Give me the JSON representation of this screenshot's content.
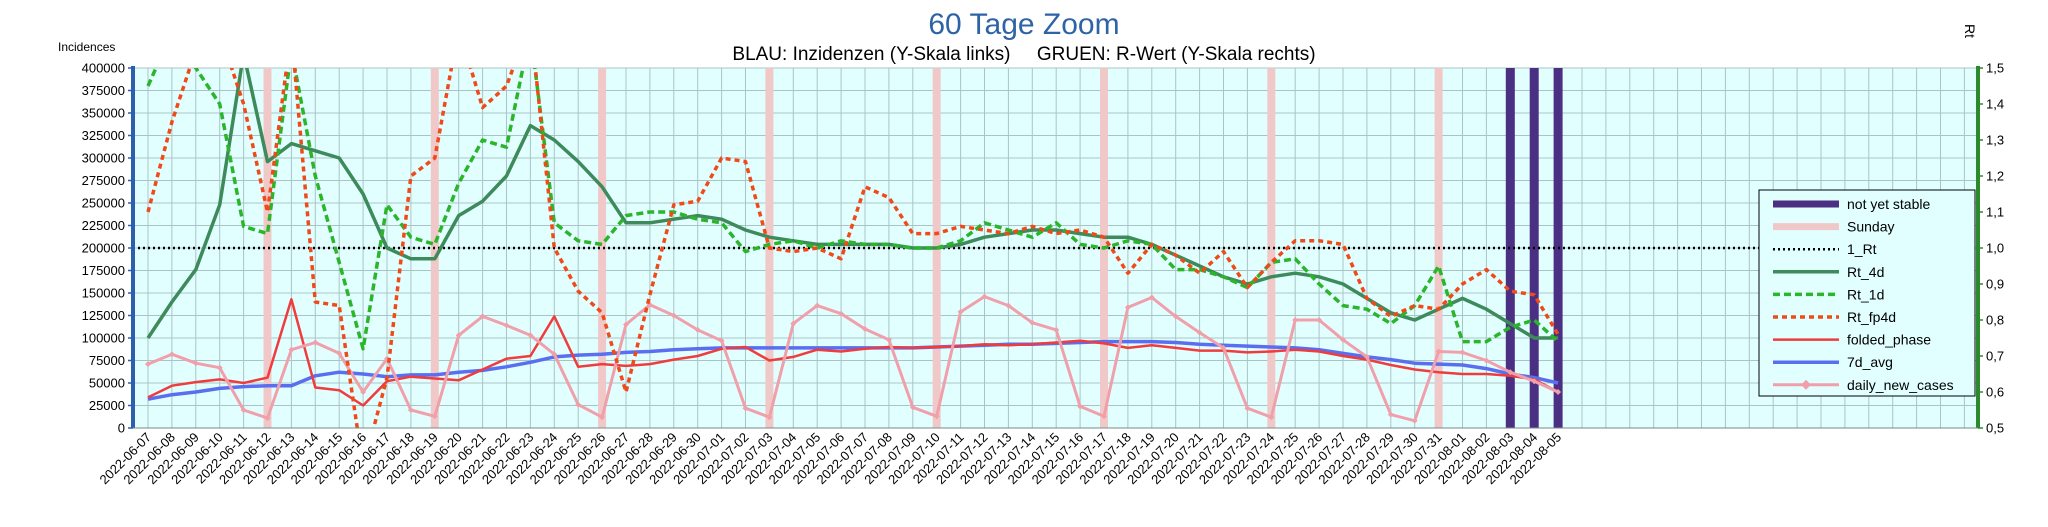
{
  "chart_data": {
    "type": "line",
    "title": "60 Tage Zoom",
    "subtitle": "BLAU: Inzidenzen (Y-Skala links)     GRUEN: R-Wert (Y-Skala rechts)",
    "ylabel_left": "Incidences",
    "ylabel_right": "Rt",
    "ylim_left": [
      0,
      400000
    ],
    "ylim_right": [
      0.5,
      1.5
    ],
    "yticks_left": [
      "0",
      "25000",
      "50000",
      "75000",
      "100000",
      "125000",
      "150000",
      "175000",
      "200000",
      "225000",
      "250000",
      "275000",
      "300000",
      "325000",
      "350000",
      "375000",
      "400000"
    ],
    "yticks_right": [
      "0,5",
      "0,6",
      "0,7",
      "0,8",
      "0,9",
      "1,0",
      "1,1",
      "1,2",
      "1,3",
      "1,4",
      "1,5"
    ],
    "categories": [
      "2022-06-07",
      "2022-06-08",
      "2022-06-09",
      "2022-06-10",
      "2022-06-11",
      "2022-06-12",
      "2022-06-13",
      "2022-06-14",
      "2022-06-15",
      "2022-06-16",
      "2022-06-17",
      "2022-06-18",
      "2022-06-19",
      "2022-06-20",
      "2022-06-21",
      "2022-06-22",
      "2022-06-23",
      "2022-06-24",
      "2022-06-25",
      "2022-06-26",
      "2022-06-27",
      "2022-06-28",
      "2022-06-29",
      "2022-06-30",
      "2022-07-01",
      "2022-07-02",
      "2022-07-03",
      "2022-07-04",
      "2022-07-05",
      "2022-07-06",
      "2022-07-07",
      "2022-07-08",
      "2022-07-09",
      "2022-07-10",
      "2022-07-11",
      "2022-07-12",
      "2022-07-13",
      "2022-07-14",
      "2022-07-15",
      "2022-07-16",
      "2022-07-17",
      "2022-07-18",
      "2022-07-19",
      "2022-07-20",
      "2022-07-21",
      "2022-07-22",
      "2022-07-23",
      "2022-07-24",
      "2022-07-25",
      "2022-07-26",
      "2022-07-27",
      "2022-07-28",
      "2022-07-29",
      "2022-07-30",
      "2022-07-31",
      "2022-08-01",
      "2022-08-02",
      "2022-08-03",
      "2022-08-04",
      "2022-08-05"
    ],
    "sundays": [
      "2022-06-12",
      "2022-06-19",
      "2022-06-26",
      "2022-07-03",
      "2022-07-10",
      "2022-07-17",
      "2022-07-24",
      "2022-07-31"
    ],
    "not_yet_stable": [
      "2022-08-03",
      "2022-08-04",
      "2022-08-05"
    ],
    "reference_line_rt": 1.0,
    "series": [
      {
        "name": "Rt_4d",
        "axis": "right",
        "color": "#3d8a5a",
        "style": "solid",
        "width": 3.5,
        "values": [
          0.75,
          0.85,
          0.94,
          1.12,
          1.54,
          1.24,
          1.29,
          1.27,
          1.25,
          1.15,
          1.0,
          0.97,
          0.97,
          1.09,
          1.13,
          1.2,
          1.34,
          1.3,
          1.24,
          1.17,
          1.07,
          1.07,
          1.08,
          1.09,
          1.08,
          1.05,
          1.03,
          1.02,
          1.01,
          1.01,
          1.01,
          1.01,
          1.0,
          1.0,
          1.01,
          1.03,
          1.04,
          1.05,
          1.05,
          1.04,
          1.03,
          1.03,
          1.01,
          0.98,
          0.95,
          0.92,
          0.9,
          0.92,
          0.93,
          0.92,
          0.9,
          0.86,
          0.82,
          0.8,
          0.83,
          0.86,
          0.83,
          0.79,
          0.75,
          0.75
        ]
      },
      {
        "name": "Rt_1d",
        "axis": "right",
        "color": "#2ab52a",
        "style": "dashed",
        "width": 3.5,
        "values": [
          1.45,
          1.6,
          1.5,
          1.4,
          1.06,
          1.04,
          1.55,
          1.2,
          0.96,
          0.72,
          1.12,
          1.03,
          1.01,
          1.18,
          1.3,
          1.28,
          1.6,
          1.07,
          1.02,
          1.01,
          1.09,
          1.1,
          1.1,
          1.08,
          1.07,
          0.99,
          1.01,
          1.02,
          1.0,
          1.02,
          1.01,
          1.01,
          1.0,
          1.0,
          1.02,
          1.07,
          1.05,
          1.03,
          1.07,
          1.01,
          1.0,
          1.02,
          1.01,
          0.94,
          0.94,
          0.92,
          0.89,
          0.96,
          0.97,
          0.9,
          0.84,
          0.83,
          0.79,
          0.84,
          0.95,
          0.74,
          0.74,
          0.78,
          0.8,
          0.74
        ]
      },
      {
        "name": "Rt_fp4d",
        "axis": "right",
        "color": "#f04a1a",
        "style": "dotted",
        "width": 3.5,
        "values": [
          1.1,
          1.35,
          1.55,
          1.6,
          1.4,
          1.1,
          1.6,
          0.85,
          0.84,
          0.39,
          0.64,
          1.2,
          1.25,
          1.61,
          1.39,
          1.45,
          1.63,
          1.0,
          0.88,
          0.82,
          0.6,
          0.87,
          1.12,
          1.13,
          1.25,
          1.24,
          1.0,
          0.99,
          1.0,
          0.97,
          1.17,
          1.14,
          1.04,
          1.04,
          1.06,
          1.05,
          1.04,
          1.06,
          1.04,
          1.05,
          1.03,
          0.93,
          1.01,
          0.98,
          0.93,
          0.99,
          0.89,
          0.96,
          1.02,
          1.02,
          1.01,
          0.86,
          0.81,
          0.84,
          0.83,
          0.9,
          0.94,
          0.88,
          0.87,
          0.76
        ]
      },
      {
        "name": "folded_phase",
        "axis": "left",
        "color": "#f03c3c",
        "style": "solid",
        "width": 2.5,
        "values": [
          34000,
          47000,
          51000,
          54000,
          50000,
          56000,
          143000,
          45000,
          42000,
          25000,
          52000,
          57000,
          55000,
          53000,
          65000,
          77000,
          80000,
          124000,
          68000,
          71000,
          69000,
          71000,
          76000,
          80000,
          88000,
          90000,
          75000,
          79000,
          87000,
          85000,
          88000,
          90000,
          89000,
          90000,
          91000,
          93000,
          92000,
          93000,
          95000,
          97000,
          94000,
          89000,
          92000,
          89000,
          86000,
          86000,
          84000,
          85000,
          87000,
          85000,
          80000,
          76000,
          70000,
          65000,
          62000,
          60000,
          60000,
          58000,
          54000,
          40000
        ]
      },
      {
        "name": "7d_avg",
        "axis": "left",
        "color": "#5a6ef0",
        "style": "solid",
        "width": 3.5,
        "values": [
          32000,
          37000,
          40000,
          44000,
          46000,
          47000,
          47000,
          58000,
          62000,
          60000,
          57000,
          59000,
          59000,
          62000,
          64000,
          68000,
          73000,
          79000,
          81000,
          82000,
          84000,
          85000,
          87000,
          88000,
          89000,
          89000,
          89000,
          89000,
          89000,
          89000,
          89000,
          89000,
          89000,
          90000,
          91000,
          92000,
          93000,
          93000,
          94000,
          95000,
          96000,
          96000,
          96000,
          95000,
          93000,
          92000,
          91000,
          90000,
          89000,
          87000,
          83000,
          79000,
          76000,
          72000,
          71000,
          70000,
          66000,
          60000,
          56000,
          50000
        ]
      },
      {
        "name": "daily_new_cases",
        "axis": "left",
        "color": "#f0a0aa",
        "style": "solid",
        "width": 3,
        "values": [
          71000,
          82000,
          72000,
          67000,
          20000,
          11000,
          87000,
          95000,
          83000,
          40000,
          77000,
          20000,
          13000,
          103000,
          124000,
          114000,
          103000,
          82000,
          26000,
          12000,
          115000,
          137000,
          125000,
          109000,
          97000,
          22000,
          12000,
          116000,
          136000,
          127000,
          110000,
          98000,
          23000,
          13000,
          129000,
          146000,
          136000,
          117000,
          109000,
          24000,
          13000,
          134000,
          145000,
          124000,
          106000,
          89000,
          22000,
          12000,
          120000,
          120000,
          98000,
          79000,
          15000,
          8000,
          85000,
          84000,
          75000,
          62000,
          52000,
          40000
        ]
      }
    ],
    "legend": {
      "placement": "right",
      "entries": [
        "not yet stable",
        "Sunday",
        "1_Rt",
        "Rt_4d",
        "Rt_1d",
        "Rt_fp4d",
        "folded_phase",
        "7d_avg",
        "daily_new_cases"
      ]
    },
    "colors": {
      "plot_bg": "#e2ffff",
      "grid": "#a9c4c4",
      "sunday": "#f1c8c8",
      "not_yet_stable": "#4a2f82",
      "axis_left": "#2c5fad",
      "axis_right": "#2b8a2b",
      "legend_bg": "#e2ffff"
    },
    "grid": true
  }
}
